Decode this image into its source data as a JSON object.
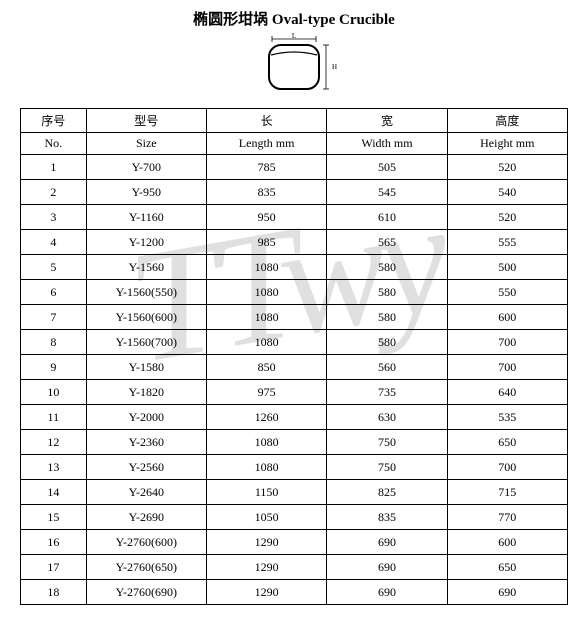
{
  "title": "椭圆形坩埚 Oval-type Crucible",
  "watermark": "TTwy",
  "diagram": {
    "label_L": "L",
    "label_H": "H",
    "stroke": "#000000",
    "fill": "#ffffff"
  },
  "table": {
    "headers_cn": [
      "序号",
      "型号",
      "长",
      "宽",
      "高度"
    ],
    "headers_en": [
      "No.",
      "Size",
      "Length mm",
      "Width mm",
      "Height mm"
    ],
    "rows": [
      [
        "1",
        "Y-700",
        "785",
        "505",
        "520"
      ],
      [
        "2",
        "Y-950",
        "835",
        "545",
        "540"
      ],
      [
        "3",
        "Y-1160",
        "950",
        "610",
        "520"
      ],
      [
        "4",
        "Y-1200",
        "985",
        "565",
        "555"
      ],
      [
        "5",
        "Y-1560",
        "1080",
        "580",
        "500"
      ],
      [
        "6",
        "Y-1560(550)",
        "1080",
        "580",
        "550"
      ],
      [
        "7",
        "Y-1560(600)",
        "1080",
        "580",
        "600"
      ],
      [
        "8",
        "Y-1560(700)",
        "1080",
        "580",
        "700"
      ],
      [
        "9",
        "Y-1580",
        "850",
        "560",
        "700"
      ],
      [
        "10",
        "Y-1820",
        "975",
        "735",
        "640"
      ],
      [
        "11",
        "Y-2000",
        "1260",
        "630",
        "535"
      ],
      [
        "12",
        "Y-2360",
        "1080",
        "750",
        "650"
      ],
      [
        "13",
        "Y-2560",
        "1080",
        "750",
        "700"
      ],
      [
        "14",
        "Y-2640",
        "1150",
        "825",
        "715"
      ],
      [
        "15",
        "Y-2690",
        "1050",
        "835",
        "770"
      ],
      [
        "16",
        "Y-2760(600)",
        "1290",
        "690",
        "600"
      ],
      [
        "17",
        "Y-2760(650)",
        "1290",
        "690",
        "650"
      ],
      [
        "18",
        "Y-2760(690)",
        "1290",
        "690",
        "690"
      ]
    ],
    "border_color": "#000000",
    "font_size": 12
  }
}
